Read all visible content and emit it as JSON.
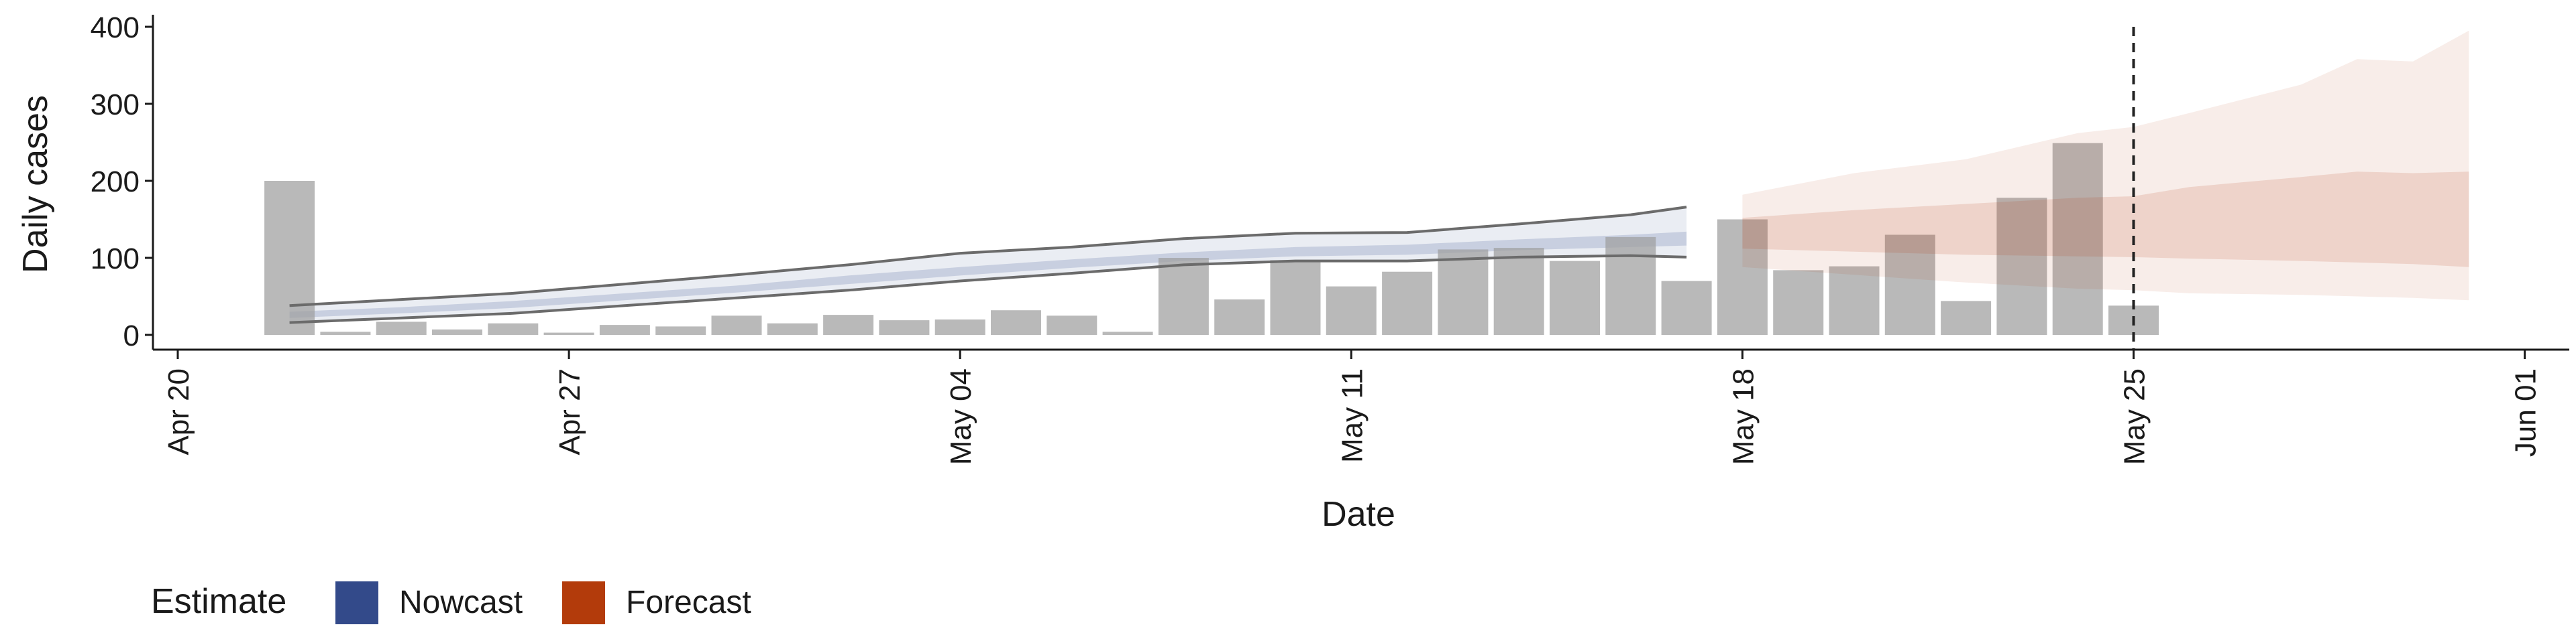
{
  "chart_data": {
    "type": "bar",
    "title": "",
    "xlabel": "Date",
    "ylabel": "Daily cases",
    "ylim": [
      0,
      420
    ],
    "xlim": [
      "2020-04-19",
      "2020-06-01"
    ],
    "y_ticks": [
      0,
      100,
      200,
      300,
      400
    ],
    "x_ticks": [
      {
        "date": "2020-04-20",
        "label": "Apr 20"
      },
      {
        "date": "2020-04-27",
        "label": "Apr 27"
      },
      {
        "date": "2020-05-04",
        "label": "May 04"
      },
      {
        "date": "2020-05-11",
        "label": "May 11"
      },
      {
        "date": "2020-05-18",
        "label": "May 18"
      },
      {
        "date": "2020-05-25",
        "label": "May 25"
      },
      {
        "date": "2020-06-01",
        "label": "Jun 01"
      }
    ],
    "vline_date": "2020-05-25",
    "grid": false,
    "observed_cases": {
      "dates": [
        "2020-04-22",
        "2020-04-23",
        "2020-04-24",
        "2020-04-25",
        "2020-04-26",
        "2020-04-27",
        "2020-04-28",
        "2020-04-29",
        "2020-04-30",
        "2020-05-01",
        "2020-05-02",
        "2020-05-03",
        "2020-05-04",
        "2020-05-05",
        "2020-05-06",
        "2020-05-07",
        "2020-05-08",
        "2020-05-09",
        "2020-05-10",
        "2020-05-11",
        "2020-05-12",
        "2020-05-13",
        "2020-05-14",
        "2020-05-15",
        "2020-05-16",
        "2020-05-17",
        "2020-05-18",
        "2020-05-19",
        "2020-05-20",
        "2020-05-21",
        "2020-05-22",
        "2020-05-23",
        "2020-05-24",
        "2020-05-25"
      ],
      "values": [
        200,
        4,
        17,
        7,
        15,
        3,
        13,
        11,
        25,
        15,
        26,
        19,
        20,
        32,
        25,
        4,
        100,
        46,
        97,
        63,
        82,
        111,
        113,
        96,
        127,
        70,
        150,
        84,
        89,
        130,
        44,
        178,
        249,
        38
      ]
    },
    "legend": {
      "title": "Estimate",
      "position": "bottom-left",
      "items": [
        {
          "label": "Nowcast",
          "color": "#334a8a"
        },
        {
          "label": "Forecast",
          "color": "#b33b0b"
        }
      ]
    },
    "nowcast": {
      "color": "#334a8a",
      "dates": [
        "2020-04-22",
        "2020-04-24",
        "2020-04-26",
        "2020-04-28",
        "2020-04-30",
        "2020-05-02",
        "2020-05-04",
        "2020-05-06",
        "2020-05-08",
        "2020-05-10",
        "2020-05-12",
        "2020-05-14",
        "2020-05-16",
        "2020-05-17"
      ],
      "upper_90": [
        38,
        46,
        54,
        66,
        78,
        91,
        106,
        114,
        125,
        132,
        133,
        144,
        156,
        166
      ],
      "lower_90": [
        16,
        22,
        28,
        38,
        48,
        58,
        70,
        80,
        91,
        96,
        96,
        101,
        103,
        101
      ],
      "upper_50": [
        30,
        36,
        44,
        54,
        64,
        77,
        88,
        98,
        107,
        114,
        117,
        124,
        130,
        134
      ],
      "lower_50": [
        22,
        28,
        35,
        45,
        55,
        66,
        77,
        87,
        96,
        102,
        104,
        110,
        114,
        116
      ]
    },
    "forecast": {
      "color": "#b33b0b",
      "dates": [
        "2020-05-18",
        "2020-05-20",
        "2020-05-22",
        "2020-05-24",
        "2020-05-25",
        "2020-05-26",
        "2020-05-28",
        "2020-05-29",
        "2020-05-30",
        "2020-05-31"
      ],
      "upper_90": [
        182,
        210,
        228,
        262,
        270,
        288,
        325,
        358,
        355,
        395
      ],
      "lower_90": [
        88,
        78,
        68,
        60,
        58,
        54,
        52,
        50,
        48,
        45
      ],
      "upper_50": [
        152,
        162,
        170,
        178,
        180,
        192,
        205,
        212,
        210,
        212
      ],
      "lower_50": [
        112,
        108,
        104,
        102,
        101,
        99,
        96,
        94,
        92,
        88
      ]
    }
  }
}
